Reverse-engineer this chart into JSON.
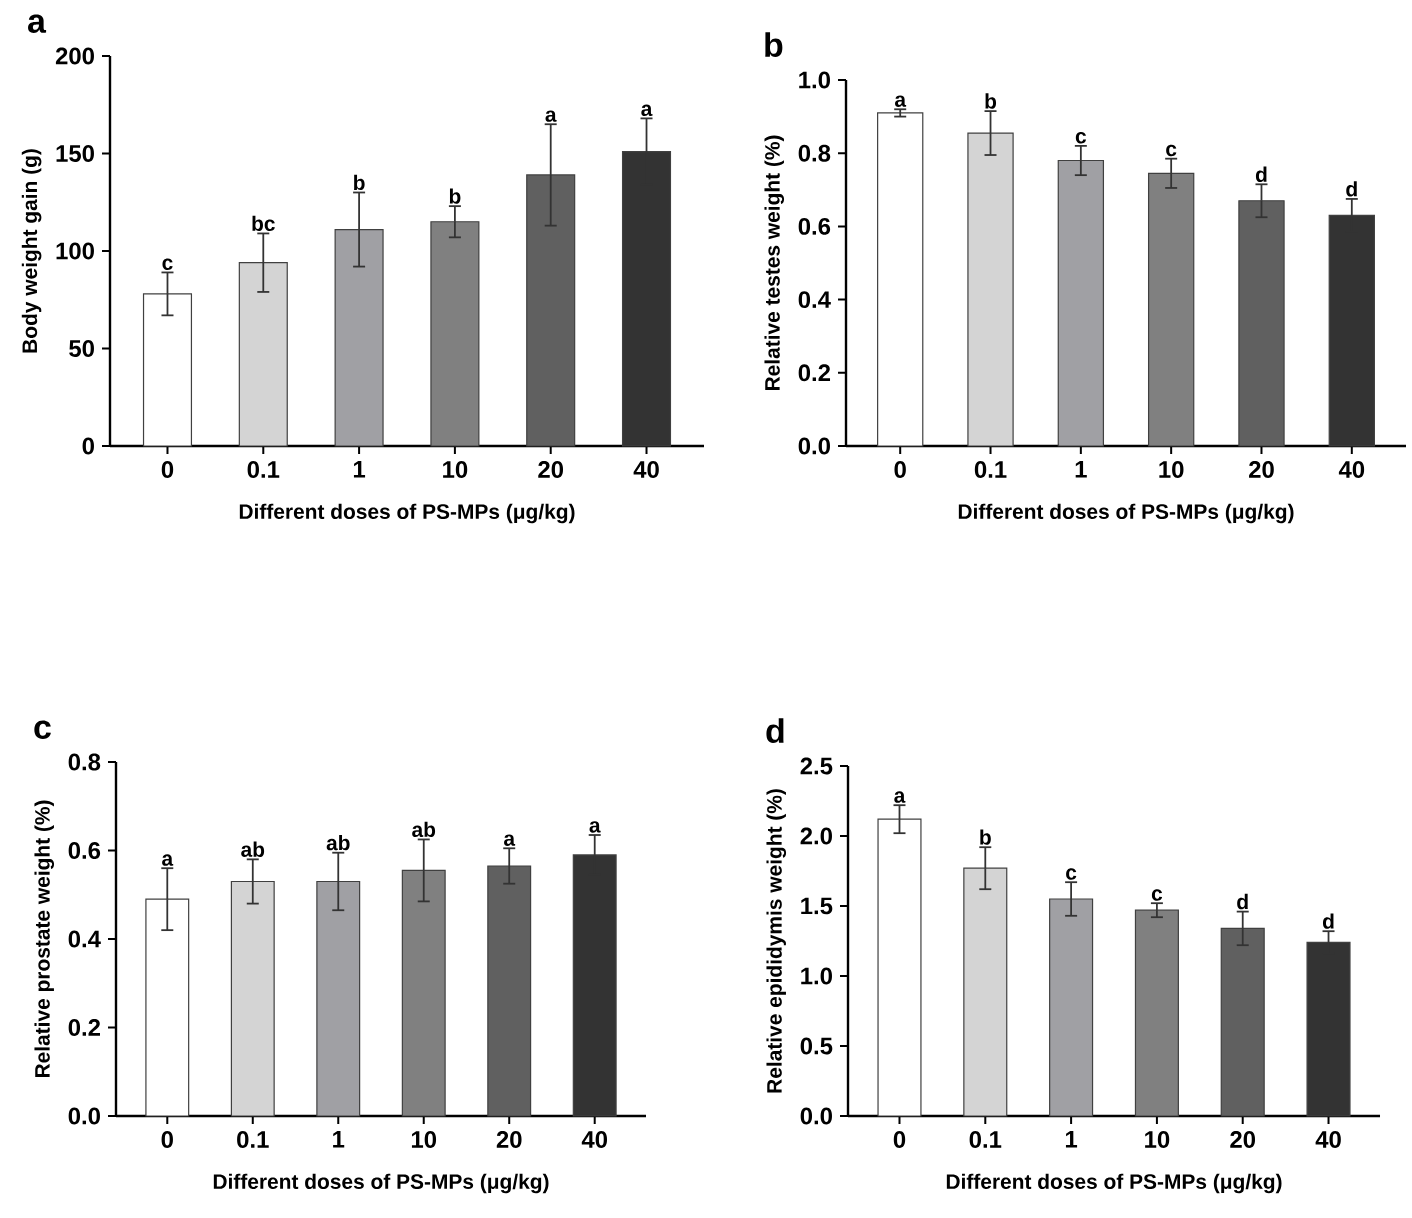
{
  "chart_data": [
    {
      "type": "bar",
      "title": "a",
      "xlabel": "Different doses of PS-MPs (μg/kg)",
      "ylabel": "Body weight gain (g)",
      "categories": [
        "0",
        "0.1",
        "1",
        "10",
        "20",
        "40"
      ],
      "values": [
        78,
        94,
        111,
        115,
        139,
        151
      ],
      "errors": [
        11,
        15,
        19,
        8,
        26,
        17
      ],
      "value_labels": [
        "c",
        "bc",
        "b",
        "b",
        "a",
        "a"
      ],
      "colors": [
        "#ffffff",
        "#d4d4d4",
        "#a0a0a4",
        "#808080",
        "#606060",
        "#333333"
      ],
      "ylim": [
        0,
        200
      ],
      "yticks": [
        0,
        50,
        100,
        150,
        200
      ]
    },
    {
      "type": "bar",
      "title": "b",
      "xlabel": "Different doses of PS-MPs (μg/kg)",
      "ylabel": "Relative testes weight (%)",
      "categories": [
        "0",
        "0.1",
        "1",
        "10",
        "20",
        "40"
      ],
      "values": [
        0.91,
        0.855,
        0.78,
        0.745,
        0.67,
        0.63
      ],
      "errors": [
        0.01,
        0.06,
        0.04,
        0.04,
        0.045,
        0.045
      ],
      "value_labels": [
        "a",
        "b",
        "c",
        "c",
        "d",
        "d"
      ],
      "colors": [
        "#ffffff",
        "#d4d4d4",
        "#a0a0a4",
        "#808080",
        "#606060",
        "#333333"
      ],
      "ylim": [
        0,
        1.0
      ],
      "yticks": [
        {
          "value": 0,
          "label": "0.0"
        },
        {
          "value": 0.2,
          "label": "0.2"
        },
        {
          "value": 0.4,
          "label": "0.4"
        },
        {
          "value": 0.6,
          "label": "0.6"
        },
        {
          "value": 0.8,
          "label": "0.8"
        },
        {
          "value": 1.0,
          "label": "1.0"
        }
      ]
    },
    {
      "type": "bar",
      "title": "c",
      "xlabel": "Different doses of PS-MPs (μg/kg)",
      "ylabel": "Relative prostate weight (%)",
      "categories": [
        "0",
        "0.1",
        "1",
        "10",
        "20",
        "40"
      ],
      "values": [
        0.49,
        0.53,
        0.53,
        0.555,
        0.565,
        0.59
      ],
      "errors": [
        0.07,
        0.05,
        0.065,
        0.07,
        0.04,
        0.045
      ],
      "value_labels": [
        "a",
        "ab",
        "ab",
        "ab",
        "a",
        "a"
      ],
      "colors": [
        "#ffffff",
        "#d4d4d4",
        "#a0a0a4",
        "#808080",
        "#606060",
        "#333333"
      ],
      "ylim": [
        0,
        0.8
      ],
      "yticks": [
        {
          "value": 0,
          "label": "0.0"
        },
        {
          "value": 0.2,
          "label": "0.2"
        },
        {
          "value": 0.4,
          "label": "0.4"
        },
        {
          "value": 0.6,
          "label": "0.6"
        },
        {
          "value": 0.8,
          "label": "0.8"
        }
      ]
    },
    {
      "type": "bar",
      "title": "d",
      "xlabel": "Different doses of PS-MPs (μg/kg)",
      "ylabel": "Relative epididymis weight (%)",
      "categories": [
        "0",
        "0.1",
        "1",
        "10",
        "20",
        "40"
      ],
      "values": [
        2.12,
        1.77,
        1.55,
        1.47,
        1.34,
        1.24
      ],
      "errors": [
        0.1,
        0.15,
        0.12,
        0.05,
        0.12,
        0.08
      ],
      "value_labels": [
        "a",
        "b",
        "c",
        "c",
        "d",
        "d"
      ],
      "colors": [
        "#ffffff",
        "#d4d4d4",
        "#a0a0a4",
        "#808080",
        "#606060",
        "#333333"
      ],
      "ylim": [
        0,
        2.5
      ],
      "yticks": [
        {
          "value": 0,
          "label": "0.0"
        },
        {
          "value": 0.5,
          "label": "0.5"
        },
        {
          "value": 1.0,
          "label": "1.0"
        },
        {
          "value": 1.5,
          "label": "1.5"
        },
        {
          "value": 2.0,
          "label": "2.0"
        },
        {
          "value": 2.5,
          "label": "2.5"
        }
      ]
    }
  ]
}
